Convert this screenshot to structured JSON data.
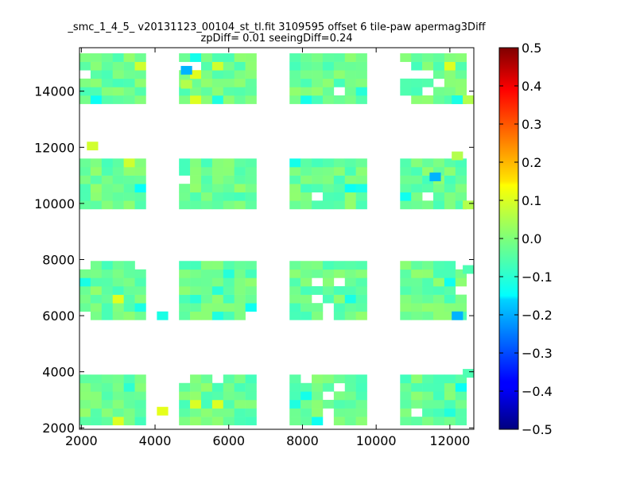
{
  "chart_data": {
    "type": "heatmap",
    "title_lines": [
      "_smc_1_4_5_ v20131123_00104_st_tl.fit 3109595 offset 6 tile-paw apermag3Diff",
      "zpDiff= 0.01 seeingDiff=0.24"
    ],
    "xlim": [
      1950,
      12650
    ],
    "ylim": [
      1950,
      15550
    ],
    "x_ticks": [
      2000,
      4000,
      6000,
      8000,
      10000,
      12000
    ],
    "y_ticks": [
      2000,
      4000,
      6000,
      8000,
      10000,
      12000,
      14000
    ],
    "colorbar": {
      "colormap": "jet",
      "range": [
        -0.5,
        0.5
      ],
      "ticks": [
        "0.5",
        "0.4",
        "0.3",
        "0.2",
        "0.1",
        "0.0",
        "−0.1",
        "−0.2",
        "−0.3",
        "−0.4",
        "−0.5"
      ]
    },
    "cell_size": 300,
    "columns": [
      {
        "x_start": 1950,
        "x_end": 3900
      },
      {
        "x_start": 4650,
        "x_end": 6900
      },
      {
        "x_start": 7650,
        "x_end": 9900
      },
      {
        "x_start": 10650,
        "x_end": 12600
      }
    ],
    "rows": [
      {
        "y_start": 2100,
        "y_end": 4150
      },
      {
        "y_start": 5850,
        "y_end": 7950
      },
      {
        "y_start": 9800,
        "y_end": 11850
      },
      {
        "y_start": 13550,
        "y_end": 15550
      }
    ],
    "extra_cells": [
      {
        "x": 4050,
        "y": 2450,
        "value": 0.1
      },
      {
        "x": 4050,
        "y": 5850,
        "value": -0.1
      },
      {
        "x": 4700,
        "y": 14600,
        "value": -0.2
      },
      {
        "x": 4700,
        "y": 14100,
        "value": 0.05
      },
      {
        "x": 12050,
        "y": 5850,
        "value": -0.2
      },
      {
        "x": 12050,
        "y": 13550,
        "value": -0.1
      },
      {
        "x": 12350,
        "y": 13550,
        "value": 0.05
      },
      {
        "x": 11450,
        "y": 10800,
        "value": -0.2
      },
      {
        "x": 12050,
        "y": 11550,
        "value": 0.05
      },
      {
        "x": 2150,
        "y": 11900,
        "value": 0.08
      },
      {
        "x": 12350,
        "y": 7500,
        "value": -0.05
      },
      {
        "x": 12350,
        "y": 3800,
        "value": -0.05
      },
      {
        "x": 12350,
        "y": 9800,
        "value": 0.05
      }
    ],
    "base_value": -0.02,
    "value_spread": 0.08
  }
}
